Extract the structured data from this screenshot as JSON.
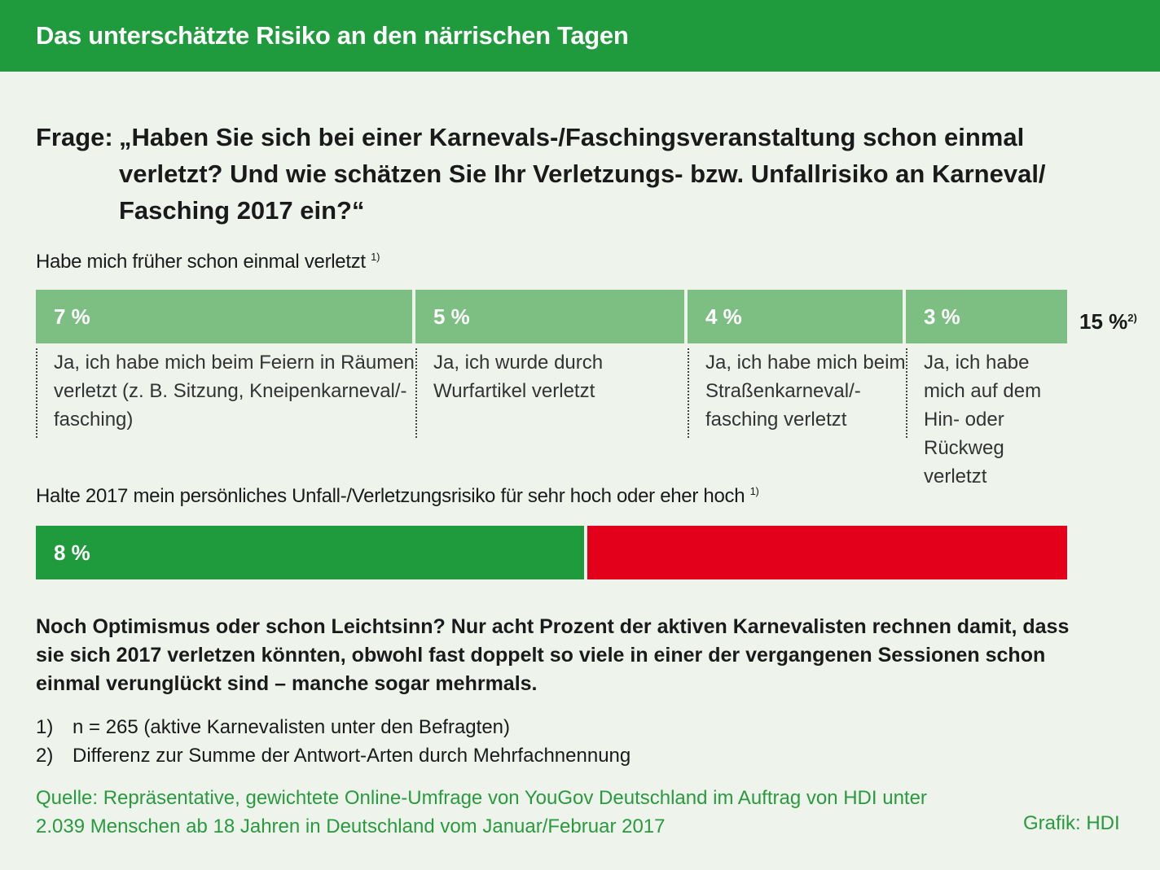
{
  "header": {
    "title": "Das unterschätzte Risiko an den närrischen Tagen"
  },
  "question": {
    "label": "Frage:",
    "text": "„Haben Sie sich bei einer Karnevals-/Faschingsveranstaltung schon einmal verletzt? Und wie schätzen Sie Ihr Verletzungs- bzw. Unfallrisiko an Karneval/ Fasching 2017 ein?“"
  },
  "chart_data": [
    {
      "type": "bar",
      "stacked": true,
      "title": "Habe mich früher schon einmal verletzt",
      "title_note": "1)",
      "categories": [
        "Ja, ich habe mich beim Feiern in Räumen verletzt (z. B. Sitzung, Kneipenkarneval/-fasching)",
        "Ja, ich wurde durch Wurfartikel verletzt",
        "Ja, ich habe mich beim Straßenkarneval/-fasching verletzt",
        "Ja, ich habe mich auf dem Hin- oder Rückweg verletzt"
      ],
      "values": [
        7,
        5,
        4,
        3
      ],
      "value_labels": [
        "7 %",
        "5 %",
        "4 %",
        "3 %"
      ],
      "total_label": "15 %",
      "total_note": "2)",
      "colors": [
        "#7dbf83"
      ]
    },
    {
      "type": "bar",
      "stacked": true,
      "title": "Halte 2017 mein persönliches Unfall-/Verletzungsrisiko für sehr hoch oder eher hoch",
      "title_note": "1)",
      "values": [
        8
      ],
      "value_labels": [
        "8 %"
      ],
      "reference_total": 15,
      "colors": [
        "#1f9a3d",
        "#e2001a"
      ]
    }
  ],
  "body": "Noch Optimismus oder schon Leichtsinn? Nur acht Prozent der aktiven Karnevalisten rechnen damit, dass sie sich 2017 verletzen könnten, obwohl fast doppelt so viele in einer der vergangenen Sessionen schon einmal verunglückt sind – manche sogar mehrmals.",
  "notes": [
    {
      "num": "1)",
      "text": "n = 265 (aktive Karnevalisten unter den Befragten)"
    },
    {
      "num": "2)",
      "text": "Differenz zur Summe der Antwort-Arten durch Mehrfachnennung"
    }
  ],
  "source": "Quelle: Repräsentative, gewichtete Online-Umfrage von YouGov Deutschland im Auftrag von HDI unter 2.039 Menschen ab 18 Jahren in Deutschland vom Januar/Februar 2017",
  "credit": "Grafik: HDI"
}
